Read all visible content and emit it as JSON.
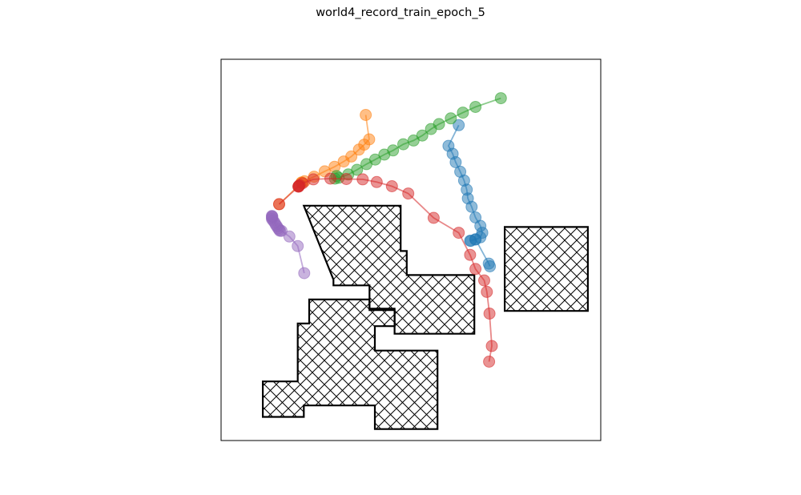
{
  "chart_data": {
    "type": "scatter",
    "title": "world4_record_train_epoch_5",
    "xlim": [
      0,
      10
    ],
    "ylim": [
      0,
      10
    ],
    "xlabel": "",
    "ylabel": "",
    "grid": false,
    "ticks": false,
    "obstacles": [
      [
        [
          2.18,
          6.16
        ],
        [
          4.73,
          6.16
        ],
        [
          4.73,
          4.97
        ],
        [
          4.89,
          4.97
        ],
        [
          4.89,
          4.34
        ],
        [
          6.67,
          4.34
        ],
        [
          6.67,
          2.8
        ],
        [
          4.57,
          2.8
        ],
        [
          4.57,
          3.46
        ],
        [
          3.91,
          3.46
        ],
        [
          3.91,
          4.07
        ],
        [
          2.96,
          4.07
        ],
        [
          2.96,
          4.22
        ],
        [
          2.96,
          4.22
        ],
        [
          2.96,
          4.22
        ],
        [
          2.96,
          4.22
        ],
        [
          2.96,
          4.22
        ],
        [
          2.96,
          4.22
        ],
        [
          2.96,
          4.22
        ],
        [
          2.96,
          4.22
        ],
        [
          2.96,
          4.22
        ],
        [
          2.96,
          4.22
        ],
        [
          2.96,
          4.22
        ],
        [
          2.96,
          4.22
        ],
        [
          2.96,
          4.22
        ],
        [
          2.96,
          4.22
        ],
        [
          2.96,
          4.22
        ],
        [
          2.96,
          4.22
        ],
        [
          2.96,
          4.22
        ],
        [
          2.96,
          4.22
        ],
        [
          2.96,
          4.22
        ],
        [
          2.96,
          4.22
        ],
        [
          2.96,
          4.22
        ],
        [
          2.96,
          4.22
        ],
        [
          2.96,
          4.22
        ],
        [
          2.96,
          4.22
        ],
        [
          2.96,
          4.22
        ],
        [
          2.96,
          4.22
        ],
        [
          2.96,
          4.22
        ],
        [
          2.96,
          4.22
        ],
        [
          2.96,
          4.22
        ],
        [
          2.96,
          4.22
        ],
        [
          2.96,
          4.22
        ]
      ],
      [
        [
          7.47,
          5.6
        ],
        [
          9.66,
          5.6
        ],
        [
          9.66,
          3.4
        ],
        [
          7.47,
          3.4
        ]
      ],
      [
        [
          2.32,
          3.7
        ],
        [
          3.91,
          3.7
        ],
        [
          3.91,
          3.42
        ],
        [
          4.57,
          3.42
        ],
        [
          4.57,
          3.0
        ],
        [
          4.05,
          3.0
        ],
        [
          4.05,
          2.36
        ],
        [
          5.7,
          2.36
        ],
        [
          5.7,
          0.3
        ],
        [
          4.05,
          0.3
        ],
        [
          4.05,
          0.92
        ],
        [
          2.18,
          0.92
        ],
        [
          2.18,
          0.62
        ],
        [
          1.1,
          0.62
        ],
        [
          1.1,
          1.55
        ],
        [
          2.02,
          1.55
        ],
        [
          2.02,
          3.07
        ],
        [
          2.32,
          3.07
        ]
      ]
    ],
    "series": [
      {
        "color": "#1f77b4",
        "points": [
          [
            6.26,
            8.27
          ],
          [
            5.99,
            7.73
          ],
          [
            6.1,
            7.52
          ],
          [
            6.18,
            7.3
          ],
          [
            6.3,
            7.05
          ],
          [
            6.4,
            6.82
          ],
          [
            6.47,
            6.58
          ],
          [
            6.5,
            6.35
          ],
          [
            6.6,
            6.13
          ],
          [
            6.7,
            5.85
          ],
          [
            6.83,
            5.63
          ],
          [
            6.88,
            5.45
          ],
          [
            6.83,
            5.33
          ],
          [
            6.7,
            5.27
          ],
          [
            6.58,
            5.24
          ],
          [
            6.56,
            5.24
          ],
          [
            6.7,
            5.28
          ],
          [
            7.05,
            4.64
          ],
          [
            7.08,
            4.57
          ]
        ]
      },
      {
        "color": "#ff7f0e",
        "points": [
          [
            3.81,
            8.54
          ],
          [
            3.9,
            7.9
          ],
          [
            3.77,
            7.76
          ],
          [
            3.63,
            7.63
          ],
          [
            3.43,
            7.45
          ],
          [
            3.23,
            7.32
          ],
          [
            2.99,
            7.18
          ],
          [
            2.73,
            7.06
          ],
          [
            2.45,
            6.92
          ],
          [
            2.2,
            6.8
          ],
          [
            2.12,
            6.77
          ],
          [
            2.12,
            6.76
          ],
          [
            1.53,
            6.2
          ]
        ]
      },
      {
        "color": "#2ca02c",
        "points": [
          [
            7.37,
            8.98
          ],
          [
            6.7,
            8.75
          ],
          [
            6.37,
            8.6
          ],
          [
            6.05,
            8.45
          ],
          [
            5.74,
            8.3
          ],
          [
            5.53,
            8.17
          ],
          [
            5.3,
            8.0
          ],
          [
            5.07,
            7.87
          ],
          [
            4.8,
            7.77
          ],
          [
            4.53,
            7.61
          ],
          [
            4.3,
            7.5
          ],
          [
            4.06,
            7.37
          ],
          [
            3.83,
            7.25
          ],
          [
            3.58,
            7.1
          ],
          [
            3.35,
            6.98
          ],
          [
            3.1,
            6.89
          ],
          [
            3.04,
            6.94
          ],
          [
            3.0,
            6.87
          ]
        ]
      },
      {
        "color": "#d62728",
        "points": [
          [
            7.06,
            2.07
          ],
          [
            7.13,
            2.48
          ],
          [
            7.07,
            3.33
          ],
          [
            7.0,
            3.9
          ],
          [
            6.93,
            4.2
          ],
          [
            6.7,
            4.5
          ],
          [
            6.56,
            4.87
          ],
          [
            6.26,
            5.45
          ],
          [
            5.6,
            5.84
          ],
          [
            4.93,
            6.48
          ],
          [
            4.5,
            6.67
          ],
          [
            4.1,
            6.78
          ],
          [
            3.73,
            6.85
          ],
          [
            3.3,
            6.86
          ],
          [
            2.88,
            6.87
          ],
          [
            2.43,
            6.85
          ],
          [
            2.15,
            6.75
          ],
          [
            2.07,
            6.7
          ],
          [
            2.05,
            6.68
          ],
          [
            2.04,
            6.67
          ],
          [
            2.04,
            6.66
          ],
          [
            2.04,
            6.66
          ],
          [
            1.53,
            6.2
          ]
        ]
      },
      {
        "color": "#9467bd",
        "points": [
          [
            2.19,
            4.39
          ],
          [
            2.02,
            5.1
          ],
          [
            1.8,
            5.35
          ],
          [
            1.59,
            5.5
          ],
          [
            1.55,
            5.5
          ],
          [
            1.53,
            5.53
          ],
          [
            1.5,
            5.57
          ],
          [
            1.47,
            5.62
          ],
          [
            1.44,
            5.66
          ],
          [
            1.41,
            5.72
          ],
          [
            1.37,
            5.77
          ],
          [
            1.34,
            5.81
          ],
          [
            1.34,
            5.84
          ],
          [
            1.35,
            5.87
          ],
          [
            1.34,
            5.88
          ],
          [
            1.34,
            5.89
          ]
        ]
      }
    ]
  }
}
